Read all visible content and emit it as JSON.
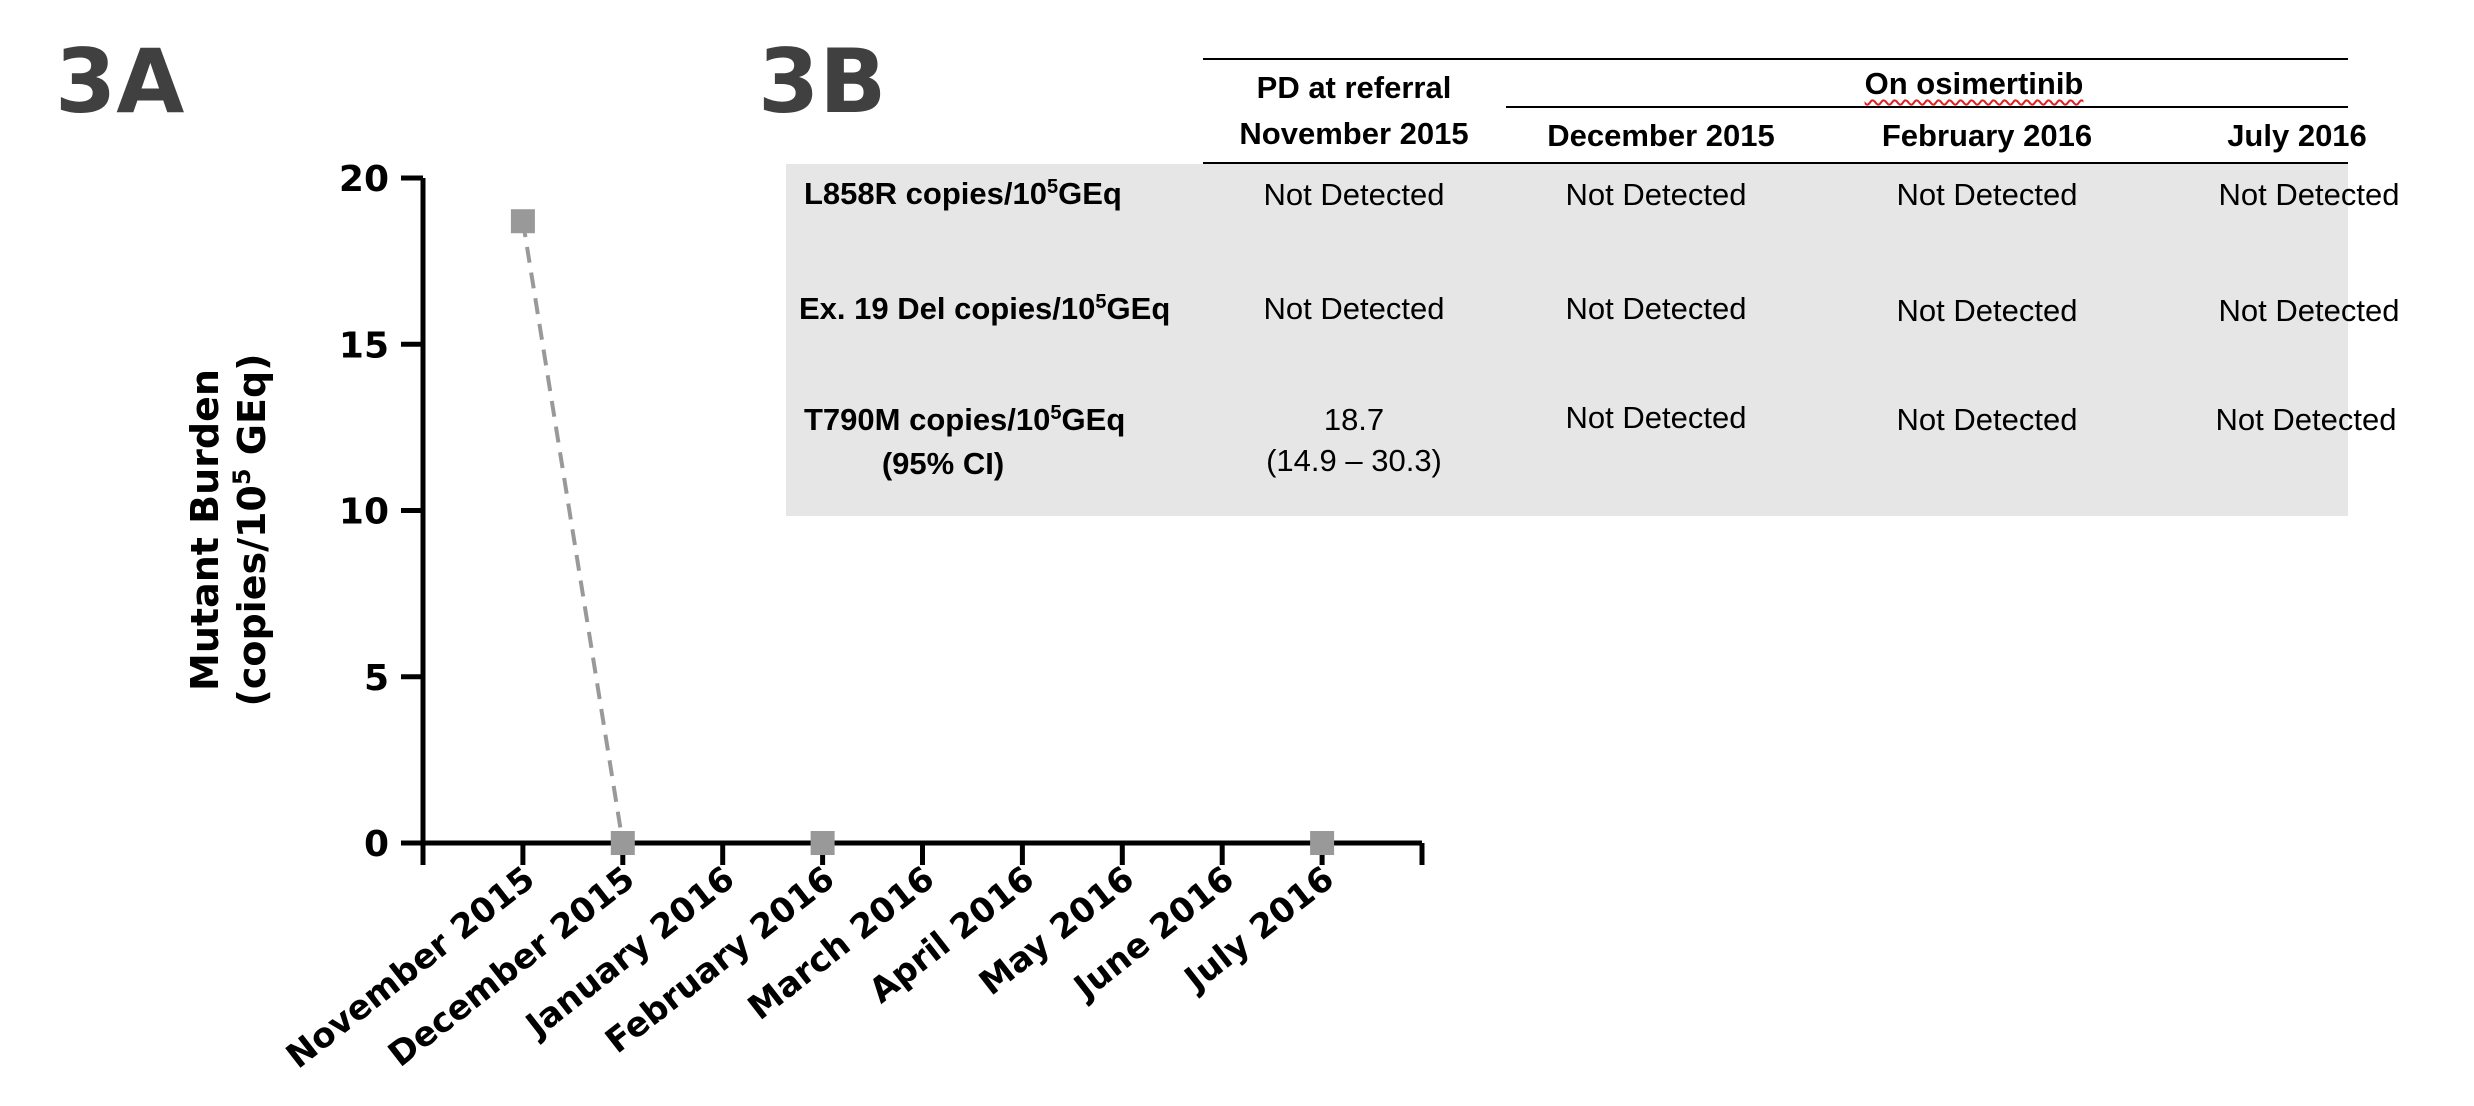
{
  "panels": {
    "a": "3A",
    "b": "3B"
  },
  "chart_data": {
    "type": "line",
    "ylabel_line1": "Mutant Burden",
    "ylabel_line2_prefix": "(copies/10",
    "ylabel_line2_sup": "5",
    "ylabel_line2_suffix": " GEq)",
    "ylim": [
      0,
      20
    ],
    "yticks": [
      0,
      5,
      10,
      15,
      20
    ],
    "categories": [
      "November 2015",
      "December 2015",
      "January 2016",
      "February 2016",
      "March 2016",
      "April 2016",
      "May 2016",
      "June 2016",
      "July 2016"
    ],
    "series": [
      {
        "x": [
          "November 2015",
          "December 2015",
          "February 2016",
          "July 2016"
        ],
        "values": [
          18.7,
          0,
          0,
          0
        ]
      }
    ],
    "series_color": "#999999",
    "axis_color": "#000000"
  },
  "table": {
    "header_pd_line1": "PD at referral",
    "header_pd_line2": "November 2015",
    "header_group": "On osimertinib",
    "columns": [
      "December 2015",
      "February 2016",
      "July 2016"
    ],
    "rows": [
      {
        "label_prefix": "L858R copies/10",
        "label_sup": "5",
        "label_suffix": "GEq",
        "label_line2": "",
        "pd": "Not Detected",
        "pd_line2": "",
        "values": [
          "Not Detected",
          "Not Detected",
          "Not Detected"
        ]
      },
      {
        "label_prefix": "Ex. 19 Del copies/10",
        "label_sup": "5",
        "label_suffix": "GEq",
        "label_line2": "",
        "pd": "Not Detected",
        "pd_line2": "",
        "values": [
          "Not Detected",
          "Not Detected",
          "Not Detected"
        ]
      },
      {
        "label_prefix": "T790M copies/10",
        "label_sup": "5",
        "label_suffix": "GEq",
        "label_line2": "(95% CI)",
        "pd": "18.7",
        "pd_line2": "(14.9 – 30.3)",
        "values": [
          "Not Detected",
          "Not Detected",
          "Not Detected"
        ]
      }
    ],
    "shade_color": "#e6e6e6"
  }
}
